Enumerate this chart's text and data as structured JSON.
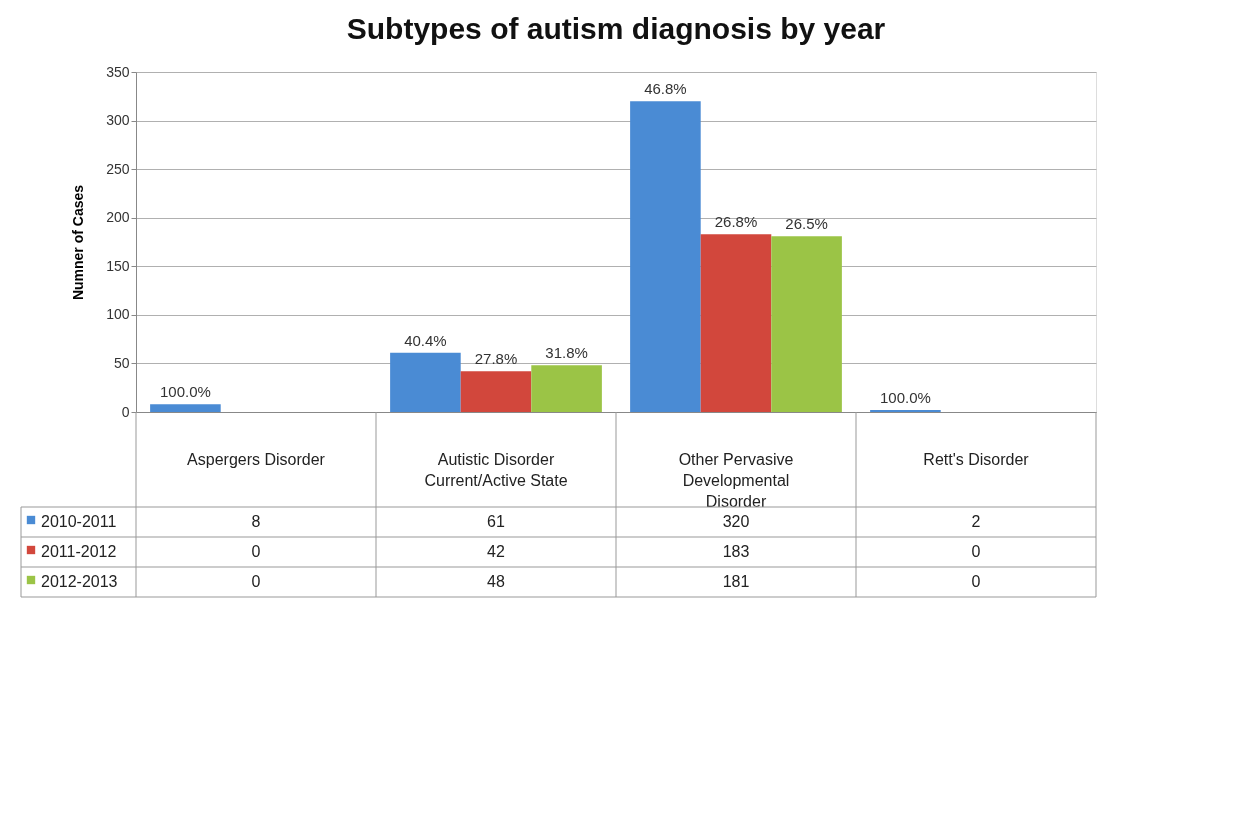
{
  "chart_data": {
    "type": "bar",
    "title": "Subtypes of autism diagnosis by year",
    "ylabel": "Numner of Cases",
    "categories": [
      "Aspergers Disorder",
      "Autistic Disorder Current/Active State",
      "Other Pervasive Developmental Disorder",
      "Rett's Disorder"
    ],
    "series": [
      {
        "name": "2010-2011",
        "color": "#4a8bd4",
        "values": [
          8,
          61,
          320,
          2
        ],
        "value_labels": [
          "8",
          "61",
          "320",
          "2"
        ]
      },
      {
        "name": "2011-2012",
        "color": "#d2473c",
        "values": [
          0,
          42,
          183,
          0
        ],
        "value_labels": [
          "0",
          "42",
          "183",
          "0"
        ]
      },
      {
        "name": "2012-2013",
        "color": "#9bc446",
        "values": [
          0,
          48,
          181,
          0
        ],
        "value_labels": [
          "0",
          "48",
          "181",
          "0"
        ]
      }
    ],
    "annotations": [
      "100.0%",
      "40.4%",
      "27.8%",
      "31.8%",
      "46.8%",
      "26.8%",
      "26.5%",
      "100.0%"
    ],
    "ylim": [
      0,
      350
    ],
    "yticks": [
      0,
      50,
      100,
      150,
      200,
      250,
      300,
      350
    ],
    "grid": "y",
    "legend": "bottom"
  }
}
